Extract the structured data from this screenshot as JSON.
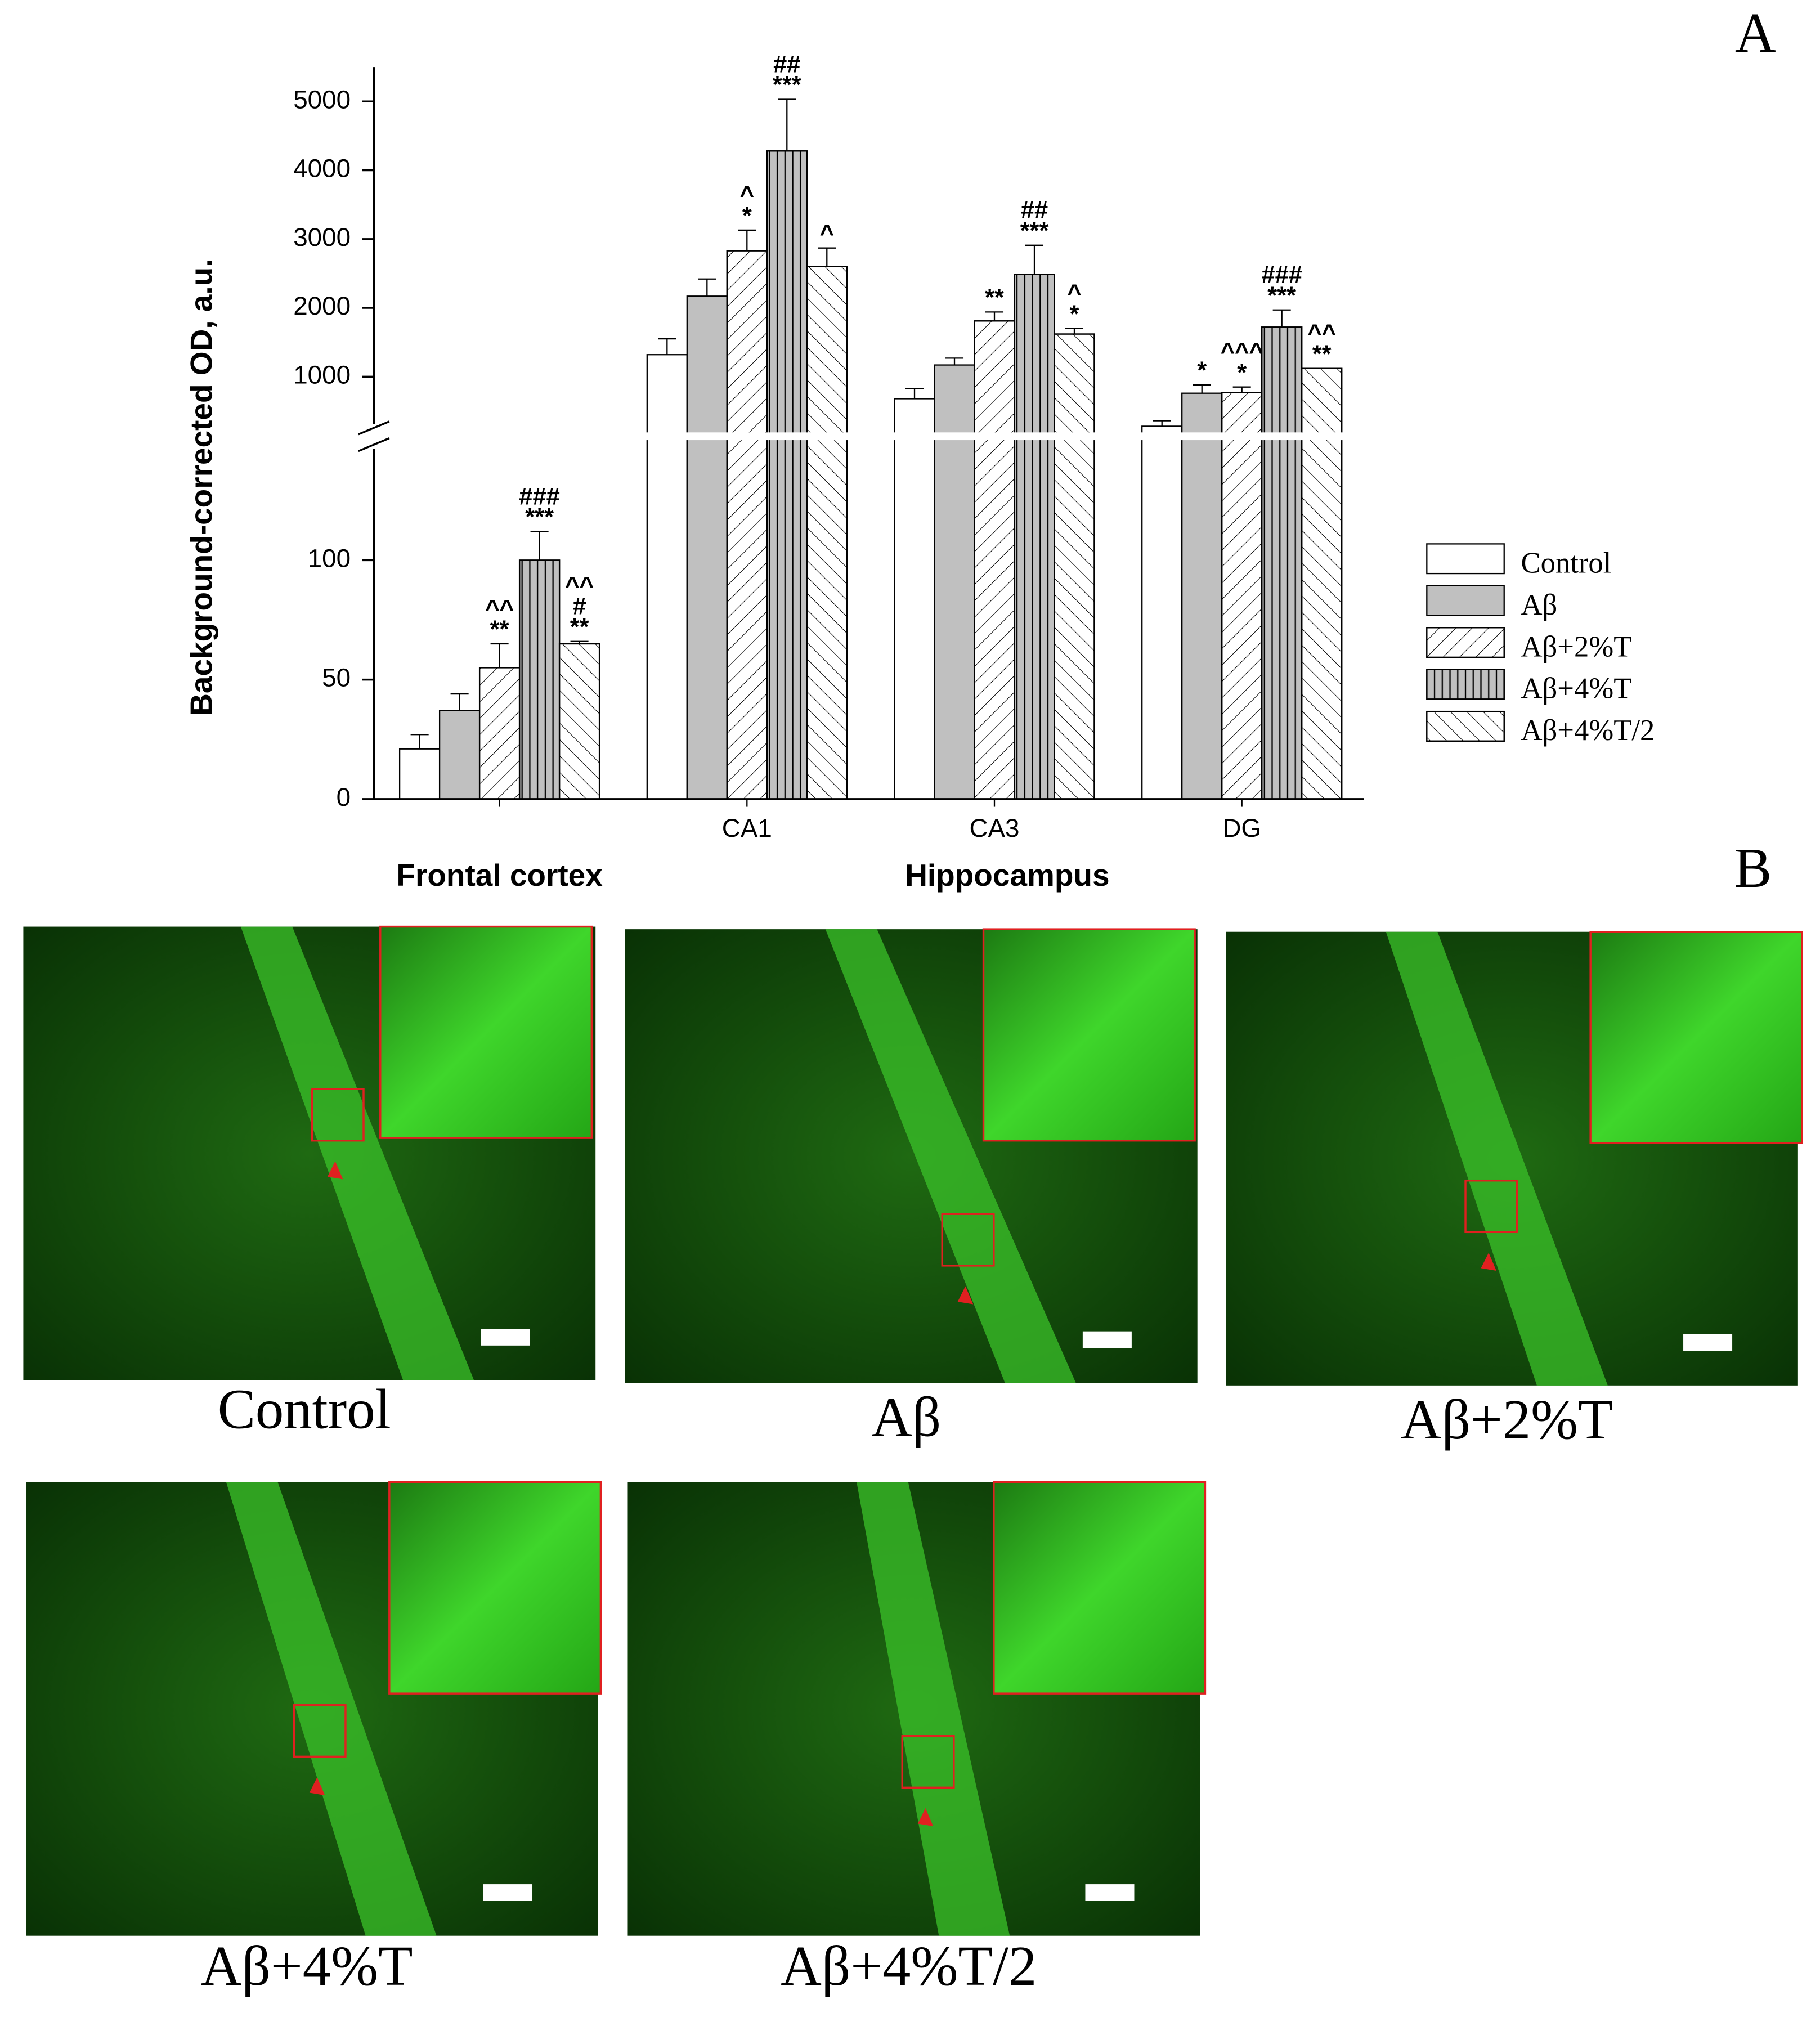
{
  "panel_a_label": "A",
  "chart_data": {
    "type": "bar",
    "y_label": "Background-corrected OD, a.u.",
    "categories": [
      null,
      "CA1",
      "CA3",
      "DG"
    ],
    "group_labels": [
      "Frontal cortex",
      "Hippocampus"
    ],
    "ylim": [
      0,
      5500
    ],
    "axis_break": [
      150,
      200
    ],
    "yticks": [
      0,
      50,
      100,
      1000,
      2000,
      3000,
      4000,
      5000
    ],
    "series": [
      {
        "name": "Control",
        "color": "#ffffff",
        "pattern": "solid",
        "values": [
          21,
          1320,
          680,
          280
        ],
        "errors": [
          6,
          230,
          150,
          80
        ],
        "annotations": [
          null,
          null,
          null,
          null
        ]
      },
      {
        "name": "Aβ",
        "color": "#c0c0c0",
        "pattern": "solid",
        "values": [
          37,
          2170,
          1170,
          760
        ],
        "errors": [
          7,
          250,
          100,
          120
        ],
        "annotations": [
          null,
          null,
          null,
          [
            "*"
          ]
        ]
      },
      {
        "name": "Aβ+2%T",
        "color": "#ffffff",
        "pattern": "forward-hatch",
        "values": [
          55,
          2830,
          1810,
          770
        ],
        "errors": [
          10,
          300,
          130,
          80
        ],
        "annotations": [
          [
            "^^",
            "**"
          ],
          [
            "^",
            "*"
          ],
          [
            "**"
          ],
          [
            "^^^",
            "*"
          ]
        ]
      },
      {
        "name": "Aβ+4%T",
        "color": "#c0c0c0",
        "pattern": "vertical",
        "values": [
          100,
          4280,
          2490,
          1720
        ],
        "errors": [
          12,
          750,
          420,
          250
        ],
        "annotations": [
          [
            "###",
            "***"
          ],
          [
            "##",
            "***"
          ],
          [
            "##",
            "***"
          ],
          [
            "###",
            "***"
          ]
        ]
      },
      {
        "name": "Aβ+4%T/2",
        "color": "#ffffff",
        "pattern": "back-hatch",
        "values": [
          65,
          2600,
          1620,
          1120
        ],
        "errors": [
          1,
          270,
          80,
          0
        ],
        "annotations": [
          [
            "^^",
            "#",
            "**"
          ],
          [
            "^"
          ],
          [
            "^",
            "*"
          ],
          [
            "^^",
            "**"
          ]
        ]
      }
    ]
  },
  "panel_b": {
    "label": "B",
    "captions": [
      "Control",
      "Aβ",
      "Aβ+2%T",
      "Aβ+4%T",
      "Aβ+4%T/2"
    ]
  }
}
